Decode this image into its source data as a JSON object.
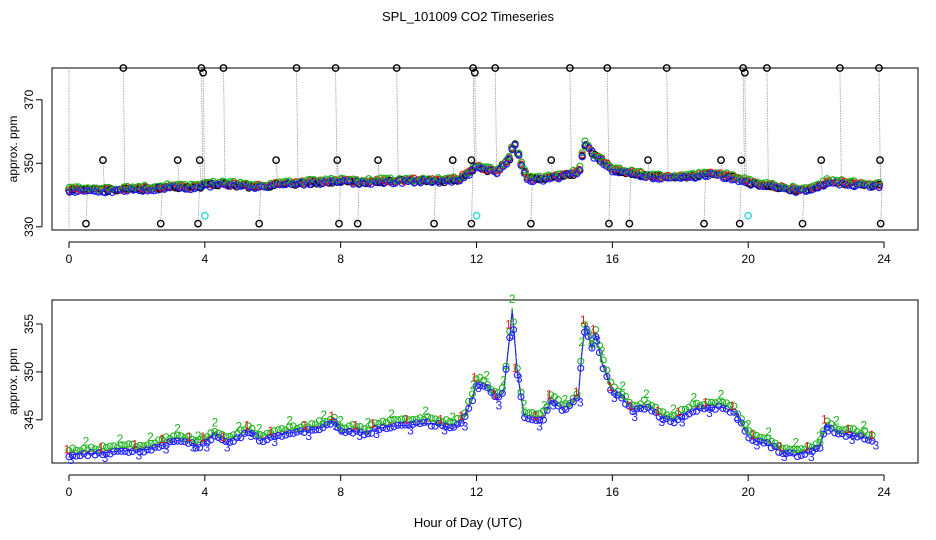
{
  "title": "SPL_101009  CO2 Timeseries",
  "xlabel": "Hour of Day (UTC)",
  "colors": {
    "series1": "#e41a1c",
    "series2": "#1fb41f",
    "series3": "#1f1fff",
    "raw": "#000000",
    "calib": "#33d6e0",
    "droplines": "#999999"
  },
  "chart_data": [
    {
      "type": "scatter",
      "name": "top-panel",
      "ylabel": "approx. ppm",
      "xlim": [
        -0.5,
        25
      ],
      "ylim": [
        329,
        380
      ],
      "x_ticks": [
        0,
        4,
        8,
        12,
        16,
        20,
        24
      ],
      "x_tick_labels": [
        "0",
        "4",
        "8",
        "12",
        "16",
        "20",
        "24"
      ],
      "y_ticks": [
        330,
        350,
        370
      ],
      "y_tick_labels": [
        "330",
        "350",
        "370"
      ],
      "baseline_points": [
        [
          0,
          341.5
        ],
        [
          0.5,
          341.5
        ],
        [
          1,
          341.5
        ],
        [
          1.5,
          341.6
        ],
        [
          2,
          341.8
        ],
        [
          2.5,
          342
        ],
        [
          3,
          342.5
        ],
        [
          3.5,
          342.2
        ],
        [
          3.8,
          342.5
        ],
        [
          4,
          343
        ],
        [
          4.5,
          343.5
        ],
        [
          5,
          343
        ],
        [
          5.5,
          342.5
        ],
        [
          6,
          343
        ],
        [
          6.5,
          343.5
        ],
        [
          7,
          343.8
        ],
        [
          7.5,
          344
        ],
        [
          8,
          344.5
        ],
        [
          8.5,
          344
        ],
        [
          9,
          344.2
        ],
        [
          9.5,
          344.3
        ],
        [
          10,
          344.5
        ],
        [
          10.5,
          344.5
        ],
        [
          11,
          344.3
        ],
        [
          11.5,
          345
        ],
        [
          11.8,
          347
        ],
        [
          12,
          349
        ],
        [
          12.3,
          348
        ],
        [
          12.6,
          347
        ],
        [
          13,
          352
        ],
        [
          13.1,
          357
        ],
        [
          13.3,
          350
        ],
        [
          13.5,
          345
        ],
        [
          14,
          345
        ],
        [
          14.5,
          346
        ],
        [
          15,
          347
        ],
        [
          15.2,
          356
        ],
        [
          15.5,
          352
        ],
        [
          15.8,
          350
        ],
        [
          16,
          348
        ],
        [
          16.5,
          347
        ],
        [
          17,
          346
        ],
        [
          17.5,
          345.5
        ],
        [
          18,
          345.5
        ],
        [
          18.5,
          346
        ],
        [
          19,
          346.5
        ],
        [
          19.5,
          345.5
        ],
        [
          20,
          344
        ],
        [
          20.5,
          343
        ],
        [
          21,
          342
        ],
        [
          21.5,
          341.5
        ],
        [
          22,
          342
        ],
        [
          22.3,
          344
        ],
        [
          22.5,
          344
        ],
        [
          23,
          343.5
        ],
        [
          23.5,
          343
        ],
        [
          23.8,
          343
        ]
      ],
      "raw_outliers": [
        [
          0.5,
          331
        ],
        [
          1,
          351
        ],
        [
          1.6,
          380
        ],
        [
          2.7,
          331
        ],
        [
          3.2,
          351
        ],
        [
          3.8,
          331
        ],
        [
          3.85,
          351
        ],
        [
          3.9,
          380
        ],
        [
          3.95,
          378.5
        ],
        [
          4.55,
          380
        ],
        [
          5.6,
          331
        ],
        [
          6.1,
          351
        ],
        [
          6.7,
          380
        ],
        [
          7.85,
          380
        ],
        [
          7.9,
          351
        ],
        [
          7.95,
          331
        ],
        [
          8.5,
          331
        ],
        [
          9.1,
          351
        ],
        [
          9.65,
          380
        ],
        [
          10.75,
          331
        ],
        [
          11.3,
          351
        ],
        [
          11.85,
          351
        ],
        [
          11.9,
          380
        ],
        [
          11.95,
          378.5
        ],
        [
          11.85,
          331
        ],
        [
          12.55,
          380
        ],
        [
          13.6,
          331
        ],
        [
          14.2,
          351
        ],
        [
          14.75,
          380
        ],
        [
          15.85,
          380
        ],
        [
          15.9,
          331
        ],
        [
          16.5,
          331
        ],
        [
          17.05,
          351
        ],
        [
          17.6,
          380
        ],
        [
          18.7,
          331
        ],
        [
          19.2,
          351
        ],
        [
          19.75,
          331
        ],
        [
          19.85,
          380
        ],
        [
          19.9,
          378.5
        ],
        [
          19.8,
          351
        ],
        [
          20.55,
          380
        ],
        [
          21.6,
          331
        ],
        [
          22.15,
          351
        ],
        [
          22.7,
          380
        ],
        [
          23.85,
          380
        ],
        [
          23.88,
          351
        ],
        [
          23.9,
          331
        ]
      ],
      "calibration_points": [
        [
          4,
          333.5
        ],
        [
          12,
          333.5
        ],
        [
          20,
          333.5
        ]
      ]
    },
    {
      "type": "line",
      "name": "bottom-panel",
      "ylabel": "approx. ppm",
      "xlim": [
        -0.5,
        25
      ],
      "ylim": [
        340.5,
        357.5
      ],
      "x_ticks": [
        0,
        4,
        8,
        12,
        16,
        20,
        24
      ],
      "x_tick_labels": [
        "0",
        "4",
        "8",
        "12",
        "16",
        "20",
        "24"
      ],
      "y_ticks": [
        345,
        350,
        355
      ],
      "y_tick_labels": [
        "345",
        "350",
        "355"
      ],
      "series": [
        {
          "name": "1",
          "marker": "1",
          "offset": 0.3
        },
        {
          "name": "2",
          "marker": "2",
          "offset": 0.8
        },
        {
          "name": "3",
          "marker": "3",
          "offset": -0.5
        }
      ],
      "points": [
        [
          0,
          341.5
        ],
        [
          0.5,
          341.6
        ],
        [
          1,
          341.7
        ],
        [
          1.5,
          341.9
        ],
        [
          2,
          342
        ],
        [
          2.4,
          342.1
        ],
        [
          2.8,
          342.6
        ],
        [
          3.2,
          343
        ],
        [
          3.6,
          342.8
        ],
        [
          3.8,
          342.2
        ],
        [
          4,
          342.8
        ],
        [
          4.3,
          343.6
        ],
        [
          4.6,
          342.8
        ],
        [
          5,
          343.2
        ],
        [
          5.3,
          344
        ],
        [
          5.6,
          343
        ],
        [
          6,
          343.4
        ],
        [
          6.5,
          343.8
        ],
        [
          7,
          344
        ],
        [
          7.5,
          344.4
        ],
        [
          7.8,
          345
        ],
        [
          8,
          343.8
        ],
        [
          8.5,
          344
        ],
        [
          8.8,
          343.6
        ],
        [
          9,
          344.2
        ],
        [
          9.5,
          344.5
        ],
        [
          10,
          344.6
        ],
        [
          10.5,
          344.8
        ],
        [
          11,
          344.6
        ],
        [
          11.3,
          344.2
        ],
        [
          11.6,
          345
        ],
        [
          11.9,
          347.5
        ],
        [
          12,
          349
        ],
        [
          12.3,
          348.5
        ],
        [
          12.6,
          347.2
        ],
        [
          12.8,
          348
        ],
        [
          13,
          354.5
        ],
        [
          13.05,
          356.5
        ],
        [
          13.2,
          350
        ],
        [
          13.4,
          345.5
        ],
        [
          13.8,
          345
        ],
        [
          14,
          345.4
        ],
        [
          14.2,
          347.2
        ],
        [
          14.6,
          346
        ],
        [
          15,
          347.5
        ],
        [
          15.1,
          352
        ],
        [
          15.2,
          355
        ],
        [
          15.4,
          352.5
        ],
        [
          15.5,
          354
        ],
        [
          15.7,
          351
        ],
        [
          16,
          348
        ],
        [
          16.3,
          347.4
        ],
        [
          16.6,
          346
        ],
        [
          17,
          346.6
        ],
        [
          17.4,
          345.5
        ],
        [
          17.8,
          345
        ],
        [
          18,
          345.4
        ],
        [
          18.4,
          346.2
        ],
        [
          18.8,
          346.4
        ],
        [
          19.2,
          346.5
        ],
        [
          19.6,
          346
        ],
        [
          20,
          343.4
        ],
        [
          20.2,
          343
        ],
        [
          20.6,
          342.6
        ],
        [
          21,
          341.8
        ],
        [
          21.4,
          341.5
        ],
        [
          21.8,
          341.8
        ],
        [
          22.1,
          342.2
        ],
        [
          22.3,
          344.6
        ],
        [
          22.6,
          343.8
        ],
        [
          23,
          343.6
        ],
        [
          23.4,
          343.3
        ],
        [
          23.7,
          343
        ]
      ]
    }
  ]
}
